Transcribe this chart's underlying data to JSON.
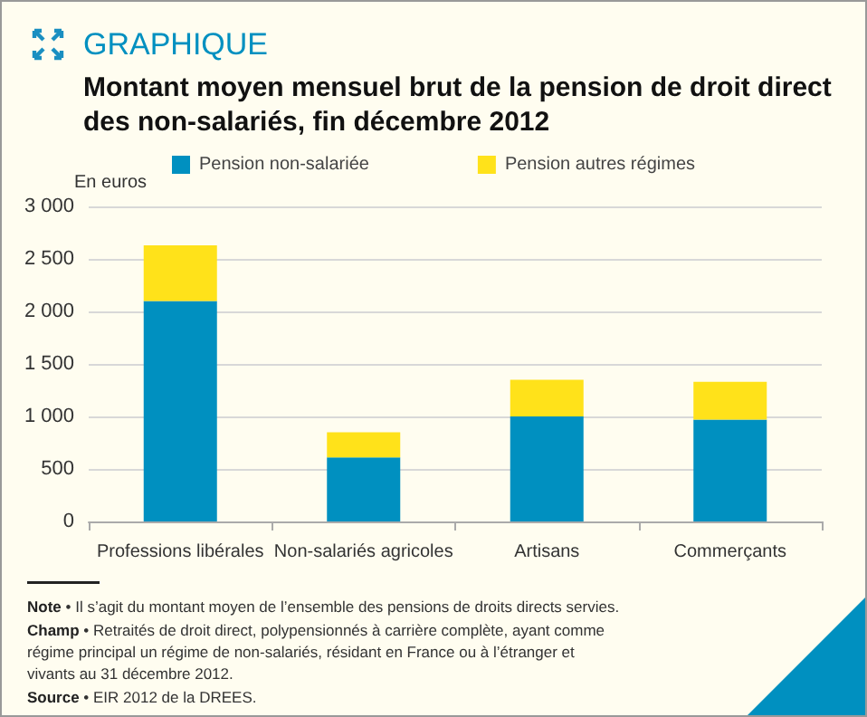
{
  "chart_data": {
    "type": "bar",
    "title": "GRAPHIQUE",
    "subtitle": "Montant moyen mensuel brut de la pension de droit direct\ndes non-salariés, fin décembre 2012",
    "ylabel": "En euros",
    "categories": [
      "Professions libérales",
      "Non-salariés agricoles",
      "Artisans",
      "Commerçants"
    ],
    "series": [
      {
        "name": "Pension non-salariée",
        "color": "#0090c0",
        "values": [
          2100,
          610,
          1000,
          970
        ]
      },
      {
        "name": "Pension autres régimes",
        "color": "#ffe21a",
        "values": [
          530,
          240,
          350,
          360
        ]
      }
    ],
    "stacked": true,
    "ylim": [
      0,
      3000
    ],
    "yticks": [
      {
        "value": 0,
        "label": "0"
      },
      {
        "value": 500,
        "label": "500"
      },
      {
        "value": 1000,
        "label": "1 000"
      },
      {
        "value": 1500,
        "label": "1 500"
      },
      {
        "value": 2000,
        "label": "2 000"
      },
      {
        "value": 2500,
        "label": "2 500"
      },
      {
        "value": 3000,
        "label": "3 000"
      }
    ],
    "grid": "y",
    "legend": "top",
    "annotations": [
      "Note • Il s’agit du montant moyen de l’ensemble des pensions de droits directs servies.",
      "Champ • Retraités de droit direct, polypensionnés à carrière complète, ayant comme régime principal un régime de non-salariés, résidant en France ou à l’étranger et vivants au 31 décembre 2012.",
      "Source • EIR 2012 de la DREES."
    ]
  }
}
